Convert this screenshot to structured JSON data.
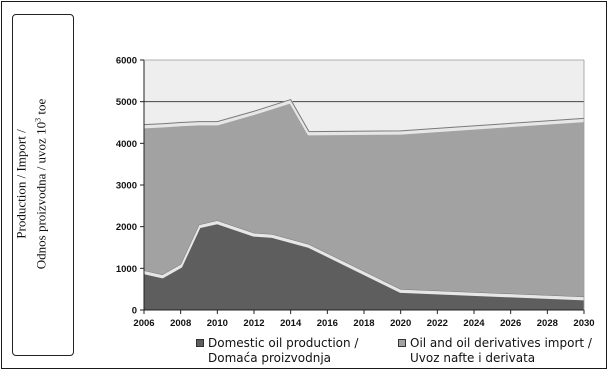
{
  "chart_data": {
    "type": "area",
    "ylabel_lines": [
      "Production / Import /",
      "Odnos proizvodna / uvoz 10",
      "3",
      " toe"
    ],
    "x_ticks": [
      "2006",
      "2008",
      "2010",
      "2012",
      "2014",
      "2016",
      "2018",
      "2020",
      "2022",
      "2024",
      "2026",
      "2028",
      "2030"
    ],
    "y_ticks": [
      "0",
      "1000",
      "2000",
      "3000",
      "4000",
      "5000",
      "6000"
    ],
    "ylim": [
      0,
      6000
    ],
    "xlim": [
      2006,
      2030
    ],
    "stacked": true,
    "series": [
      {
        "name": "Domestic oil production / Domaća proizvodnja",
        "x": [
          2006,
          2007,
          2008,
          2009,
          2010,
          2012,
          2013,
          2014,
          2015,
          2020,
          2030
        ],
        "values": [
          950,
          850,
          1100,
          2050,
          2150,
          1850,
          1820,
          1700,
          1580,
          500,
          320
        ],
        "color": "#5e5e5e"
      },
      {
        "name": "Oil and oil derivatives import / Uvoz nafte i derivata",
        "x": [
          2006,
          2007,
          2008,
          2009,
          2010,
          2012,
          2013,
          2014,
          2015,
          2020,
          2030
        ],
        "values": [
          3500,
          3620,
          3400,
          2470,
          2370,
          2920,
          3090,
          3350,
          2700,
          3800,
          4280
        ],
        "color": "#a2a2a2"
      }
    ],
    "gridlines": [
      5000
    ],
    "legend_position": "bottom"
  },
  "legend": {
    "item1_line1": "Domestic oil production /",
    "item1_line2": "Domaća proizvodnja",
    "item2_line1": "Oil and oil derivatives import /",
    "item2_line2": "Uvoz nafte i derivata"
  }
}
